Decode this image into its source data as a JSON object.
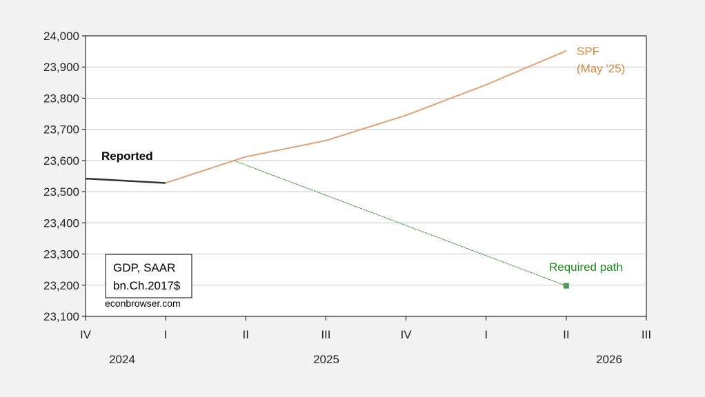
{
  "chart_data": {
    "type": "line",
    "title": "",
    "xlabel": "",
    "ylabel": "",
    "ylim": [
      23100,
      24000
    ],
    "yticks": [
      23100,
      23200,
      23300,
      23400,
      23500,
      23600,
      23700,
      23800,
      23900,
      24000
    ],
    "ytick_labels": [
      "23,100",
      "23,200",
      "23,300",
      "23,400",
      "23,500",
      "23,600",
      "23,700",
      "23,800",
      "23,900",
      "24,000"
    ],
    "x_periods": [
      "2024Q4",
      "2025Q1",
      "2025Q2",
      "2025Q3",
      "2025Q4",
      "2026Q1",
      "2026Q2",
      "2026Q3"
    ],
    "xtick_labels": [
      "IV",
      "I",
      "II",
      "III",
      "IV",
      "I",
      "II",
      "III"
    ],
    "year_labels": [
      "2024",
      "2025",
      "2026"
    ],
    "grid": true,
    "series": [
      {
        "name": "Reported",
        "color": "#333333",
        "x": [
          "2024Q4",
          "2025Q1"
        ],
        "values": [
          23542,
          23528
        ]
      },
      {
        "name": "SPF (May '25)",
        "color": "#e0a070",
        "x": [
          "2025Q1",
          "2025Q2",
          "2025Q3",
          "2025Q4",
          "2026Q1",
          "2026Q2"
        ],
        "values": [
          23528,
          23612,
          23664,
          23745,
          23843,
          23952
        ]
      },
      {
        "name": "Required path",
        "color": "#2e8b2e",
        "x": [
          "2025Q2",
          "2026Q2"
        ],
        "x_offset_start": -0.15,
        "values": [
          23600,
          23198
        ]
      }
    ],
    "annotations": {
      "reported": "Reported",
      "spf_line1": "SPF",
      "spf_line2": "(May '25)",
      "required": "Required path",
      "box_line1": "GDP, SAAR",
      "box_line2": "bn.Ch.2017$",
      "source": "econbrowser.com"
    }
  }
}
